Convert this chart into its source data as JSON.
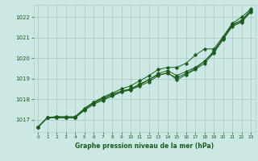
{
  "background_color": "#cce8e4",
  "plot_bg_color": "#cce8e4",
  "grid_color": "#b0ccc8",
  "line_color": "#1a5c1a",
  "marker_color": "#1a5c1a",
  "xlabel": "Graphe pression niveau de la mer (hPa)",
  "xlabel_color": "#1a5c1a",
  "xticks": [
    0,
    1,
    2,
    3,
    4,
    5,
    6,
    7,
    8,
    9,
    10,
    11,
    12,
    13,
    14,
    15,
    16,
    17,
    18,
    19,
    20,
    21,
    22,
    23
  ],
  "yticks": [
    1017,
    1018,
    1019,
    1020,
    1021,
    1022
  ],
  "ylim": [
    1016.4,
    1022.6
  ],
  "xlim": [
    -0.5,
    23.5
  ],
  "line1": [
    1016.65,
    1017.1,
    1017.15,
    1017.1,
    1017.1,
    1017.45,
    1017.75,
    1017.95,
    1018.15,
    1018.35,
    1018.5,
    1018.75,
    1018.95,
    1019.25,
    1019.4,
    1019.15,
    1019.35,
    1019.55,
    1019.85,
    1020.3,
    1020.95,
    1021.6,
    1021.8,
    1022.3
  ],
  "line2": [
    1016.65,
    1017.1,
    1017.15,
    1017.15,
    1017.15,
    1017.55,
    1017.85,
    1018.1,
    1018.3,
    1018.5,
    1018.65,
    1018.9,
    1019.15,
    1019.45,
    1019.55,
    1019.55,
    1019.75,
    1020.15,
    1020.45,
    1020.45,
    1021.05,
    1021.7,
    1022.0,
    1022.4
  ],
  "line3": [
    1016.65,
    1017.1,
    1017.1,
    1017.1,
    1017.1,
    1017.55,
    1017.85,
    1018.05,
    1018.25,
    1018.4,
    1018.5,
    1018.7,
    1018.95,
    1019.2,
    1019.25,
    1019.05,
    1019.25,
    1019.5,
    1019.85,
    1020.35,
    1021.0,
    1021.65,
    1021.85,
    1022.35
  ],
  "line4": [
    1016.65,
    1017.1,
    1017.1,
    1017.1,
    1017.1,
    1017.5,
    1017.8,
    1018.0,
    1018.2,
    1018.35,
    1018.45,
    1018.65,
    1018.85,
    1019.15,
    1019.3,
    1018.95,
    1019.2,
    1019.45,
    1019.75,
    1020.25,
    1020.9,
    1021.55,
    1021.75,
    1022.25
  ]
}
